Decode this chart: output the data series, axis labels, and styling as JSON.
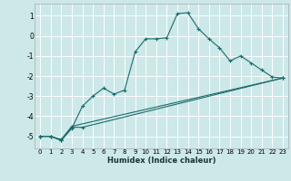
{
  "xlabel": "Humidex (Indice chaleur)",
  "bg_color": "#cce8e8",
  "grid_color": "#ffffff",
  "line_color": "#1a6b6b",
  "xlim": [
    -0.5,
    23.5
  ],
  "ylim": [
    -5.6,
    1.6
  ],
  "yticks": [
    1,
    0,
    -1,
    -2,
    -3,
    -4,
    -5
  ],
  "xticks": [
    0,
    1,
    2,
    3,
    4,
    5,
    6,
    7,
    8,
    9,
    10,
    11,
    12,
    13,
    14,
    15,
    16,
    17,
    18,
    19,
    20,
    21,
    22,
    23
  ],
  "line1_x": [
    0,
    1,
    2,
    3,
    4,
    5,
    6,
    7,
    8,
    9,
    10,
    11,
    12,
    13,
    14,
    15,
    16,
    17,
    18,
    19,
    20,
    21,
    22,
    23
  ],
  "line1_y": [
    -5.0,
    -5.0,
    -5.2,
    -4.6,
    -3.5,
    -3.0,
    -2.6,
    -2.9,
    -2.7,
    -0.8,
    -0.15,
    -0.15,
    -0.1,
    1.1,
    1.15,
    0.35,
    -0.15,
    -0.6,
    -1.25,
    -1.0,
    -1.35,
    -1.7,
    -2.05,
    -2.1
  ],
  "line2_x": [
    0,
    1,
    2,
    3,
    4,
    23
  ],
  "line2_y": [
    -5.0,
    -5.0,
    -5.2,
    -4.55,
    -4.55,
    -2.1
  ],
  "line3_x": [
    0,
    1,
    2,
    3,
    23
  ],
  "line3_y": [
    -5.0,
    -5.0,
    -5.15,
    -4.5,
    -2.1
  ],
  "marker": "+",
  "markersize": 3.5,
  "linewidth": 0.8,
  "tick_fontsize": 5.0,
  "xlabel_fontsize": 6.0
}
